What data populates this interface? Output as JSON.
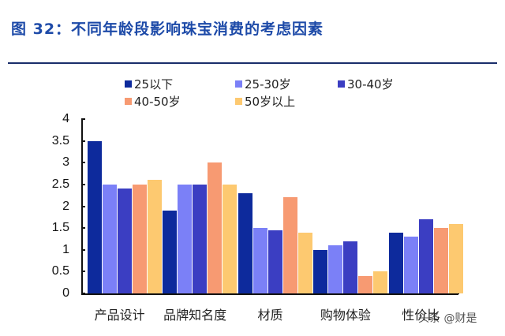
{
  "title": "图 32：不同年龄段影响珠宝消费的考虑因素",
  "watermark": "头条 @财是",
  "chart_data": {
    "type": "bar",
    "title": "图 32：不同年龄段影响珠宝消费的考虑因素",
    "xlabel": "",
    "ylabel": "",
    "ylim": [
      0,
      4
    ],
    "yticks": [
      "0",
      "0.5",
      "1",
      "1.5",
      "2",
      "2.5",
      "3",
      "3.5",
      "4"
    ],
    "grid": false,
    "legend_position": "top",
    "categories": [
      "产品设计",
      "品牌知名度",
      "材质",
      "购物体验",
      "性价比"
    ],
    "series": [
      {
        "name": "25以下",
        "color": "#0d2a9c",
        "values": [
          3.5,
          1.9,
          2.3,
          1.0,
          1.4
        ]
      },
      {
        "name": "25-30岁",
        "color": "#7b80f7",
        "values": [
          2.5,
          2.5,
          1.5,
          1.1,
          1.3
        ]
      },
      {
        "name": "30-40岁",
        "color": "#3b3ec2",
        "values": [
          2.4,
          2.5,
          1.45,
          1.2,
          1.7
        ]
      },
      {
        "name": "40-50岁",
        "color": "#f79a72",
        "values": [
          2.5,
          3.0,
          2.2,
          0.4,
          1.5
        ]
      },
      {
        "name": "50岁以上",
        "color": "#fdc970",
        "values": [
          2.6,
          2.5,
          1.4,
          0.5,
          1.6
        ]
      }
    ]
  }
}
